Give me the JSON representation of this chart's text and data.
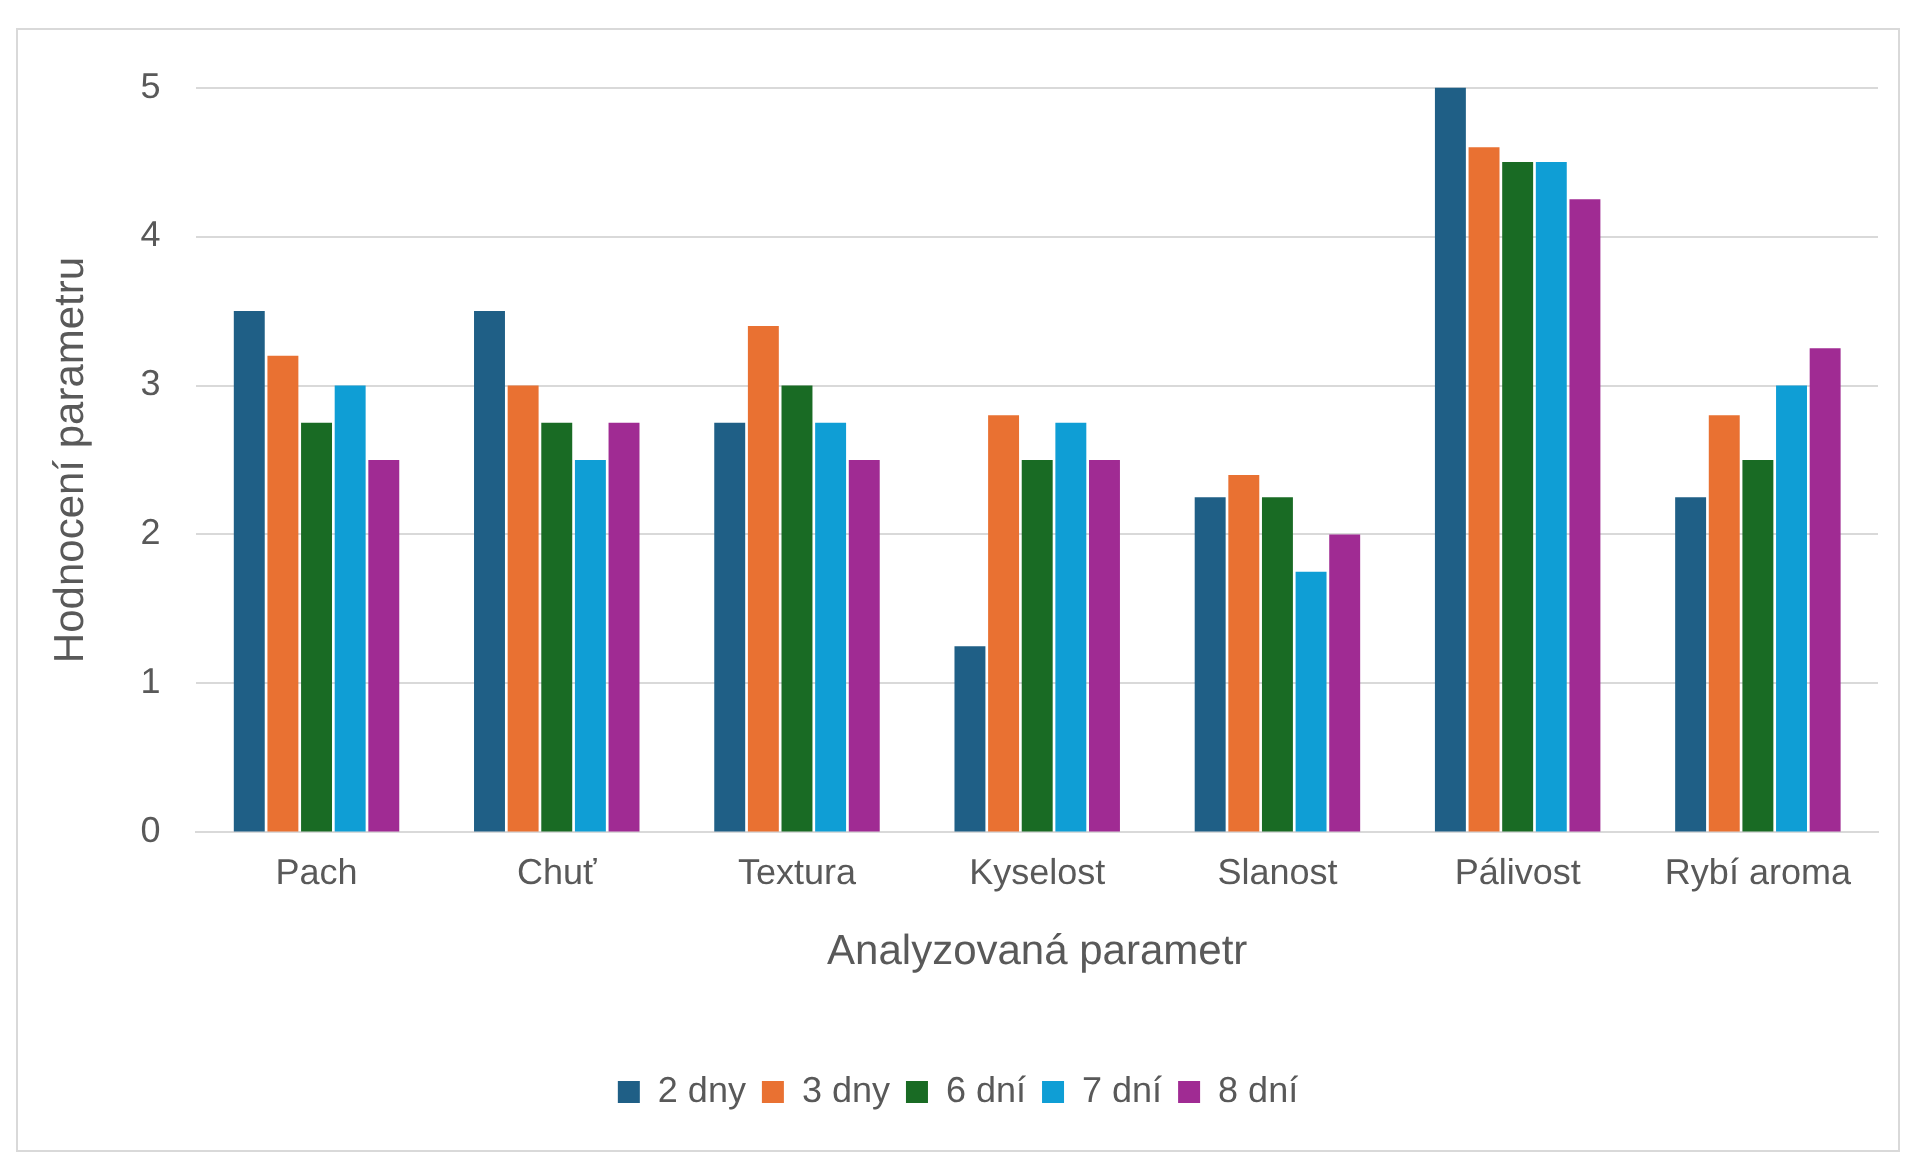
{
  "chart_data": {
    "type": "bar",
    "xlabel": "Analyzovaná parametr",
    "ylabel": "Hodnocení parametru",
    "categories": [
      "Pach",
      "Chuť",
      "Textura",
      "Kyselost",
      "Slanost",
      "Pálivost",
      "Rybí aroma"
    ],
    "series": [
      {
        "name": "2 dny",
        "color": "#1f5f86",
        "values": [
          3.5,
          3.5,
          2.75,
          1.25,
          2.25,
          5.0,
          2.25
        ]
      },
      {
        "name": "3 dny",
        "color": "#e97132",
        "values": [
          3.2,
          3.0,
          3.4,
          2.8,
          2.4,
          4.6,
          2.8
        ]
      },
      {
        "name": "6 dní",
        "color": "#196b24",
        "values": [
          2.75,
          2.75,
          3.0,
          2.5,
          2.25,
          4.5,
          2.5
        ]
      },
      {
        "name": "7 dní",
        "color": "#0f9ed5",
        "values": [
          3.0,
          2.5,
          2.75,
          2.75,
          1.75,
          4.5,
          3.0
        ]
      },
      {
        "name": "8 dní",
        "color": "#a02b93",
        "values": [
          2.5,
          2.75,
          2.5,
          2.5,
          2.0,
          4.25,
          3.25
        ]
      }
    ],
    "ylim": [
      0,
      5
    ],
    "yticks": [
      0,
      1,
      2,
      3,
      4,
      5
    ],
    "grid": "y",
    "legend": "bottom"
  }
}
